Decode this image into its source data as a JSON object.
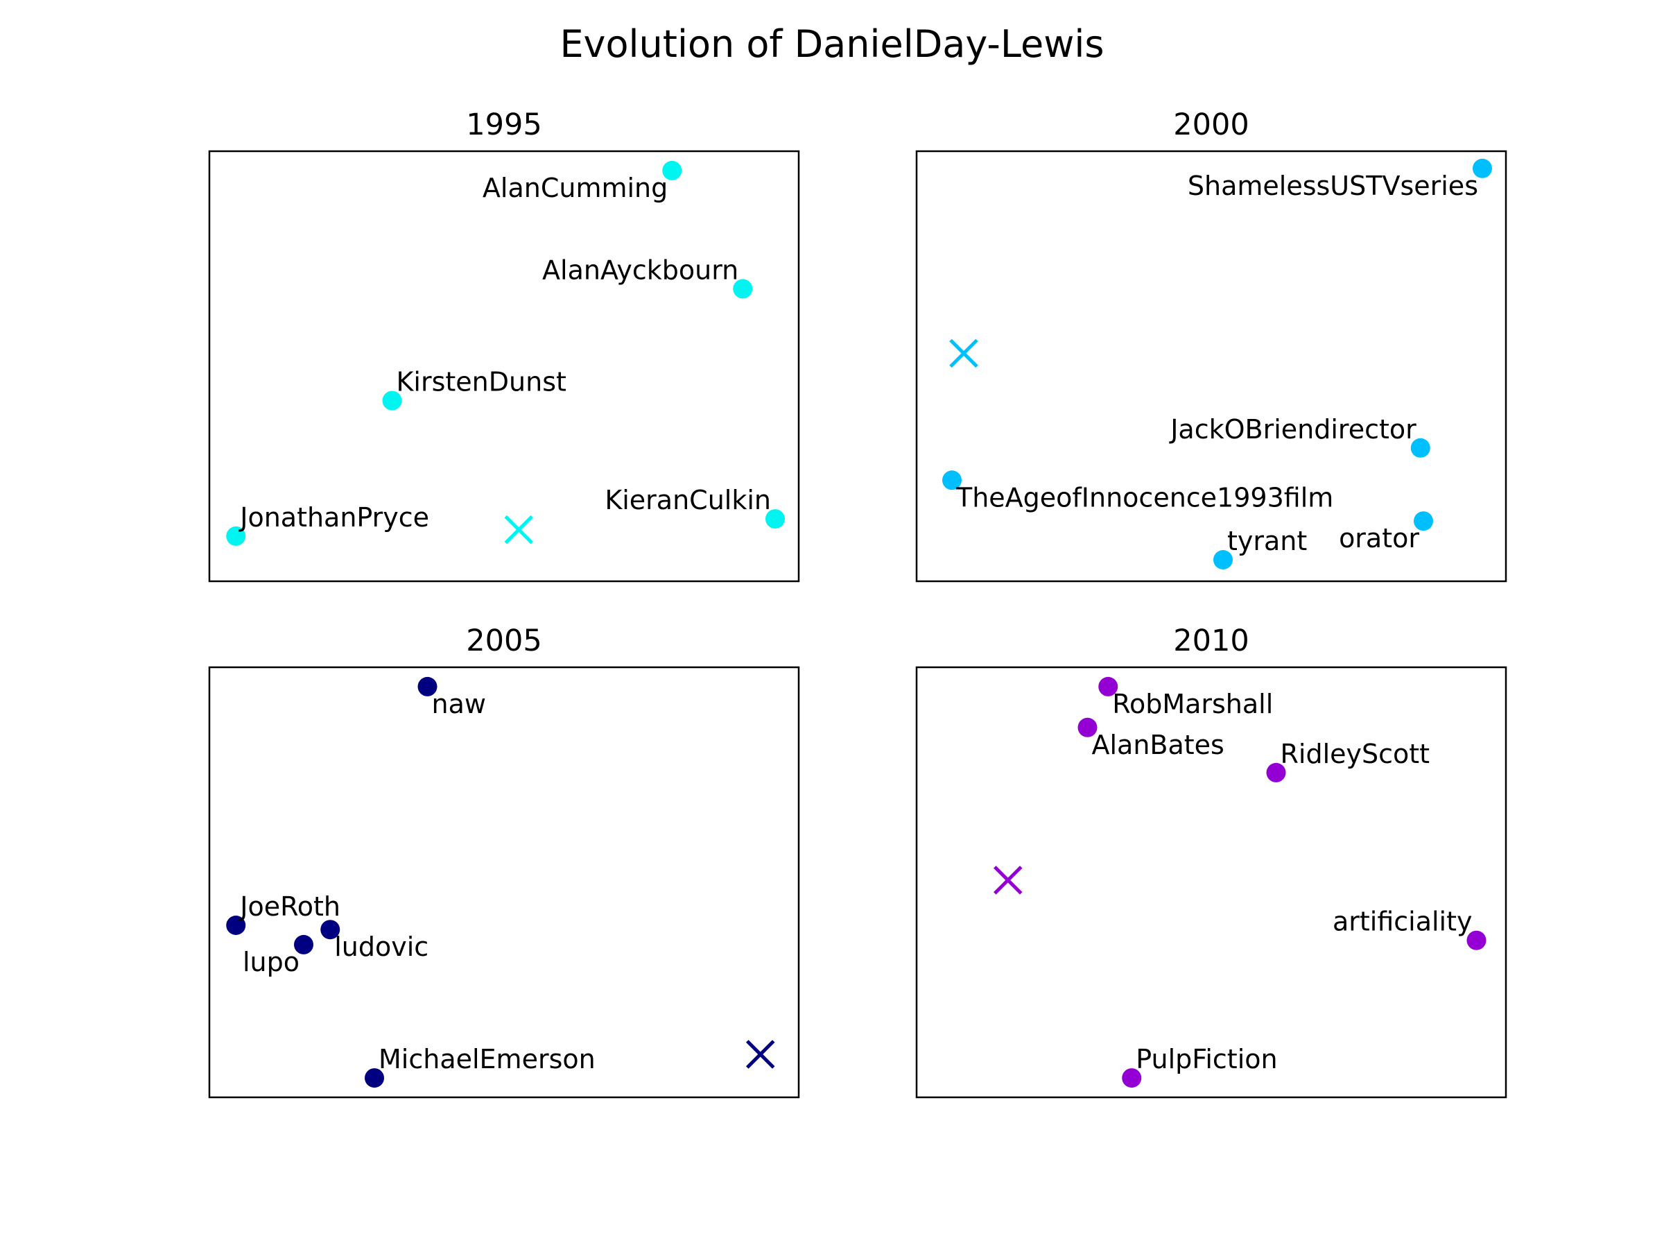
{
  "chart_data": {
    "type": "scatter",
    "title": "Evolution of DanielDay-Lewis",
    "grid": false,
    "legend": "none",
    "panels": [
      {
        "title": "1995",
        "color": "#00f5f0",
        "center": [
          5.25,
          1.2
        ],
        "points": [
          {
            "label": "AlanCumming",
            "x": 7.85,
            "y": 9.55,
            "anchor": "end",
            "dy": 1
          },
          {
            "label": "AlanAyckbourn",
            "x": 9.05,
            "y": 6.8,
            "anchor": "end",
            "dy": -1
          },
          {
            "label": "KirstenDunst",
            "x": 3.1,
            "y": 4.2,
            "anchor": "start",
            "dy": -1
          },
          {
            "label": "JonathanPryce",
            "x": 0.45,
            "y": 1.05,
            "anchor": "start",
            "dy": -1
          },
          {
            "label": "KieranCulkin",
            "x": 9.6,
            "y": 1.45,
            "anchor": "end",
            "dy": -1
          }
        ]
      },
      {
        "title": "2000",
        "color": "#00bfff",
        "center": [
          0.8,
          5.3
        ],
        "points": [
          {
            "label": "ShamelessUSTVseries",
            "x": 9.6,
            "y": 9.6,
            "anchor": "end",
            "dy": 1
          },
          {
            "label": "JackOBriendirector",
            "x": 8.55,
            "y": 3.1,
            "anchor": "end",
            "dy": -1
          },
          {
            "label": "TheAgeofInnocence1993film",
            "x": 0.6,
            "y": 2.35,
            "anchor": "start",
            "dy": 1
          },
          {
            "label": "orator",
            "x": 8.6,
            "y": 1.4,
            "anchor": "end",
            "dy": 1
          },
          {
            "label": "tyrant",
            "x": 5.2,
            "y": 0.5,
            "anchor": "start",
            "dy": -1
          }
        ]
      },
      {
        "title": "2005",
        "color": "#000080",
        "center": [
          9.35,
          1.0
        ],
        "points": [
          {
            "label": "naw",
            "x": 3.7,
            "y": 9.55,
            "anchor": "start",
            "dy": 1
          },
          {
            "label": "JoeRoth",
            "x": 0.45,
            "y": 4.0,
            "anchor": "start",
            "dy": -1
          },
          {
            "label": "ludovic",
            "x": 2.05,
            "y": 3.9,
            "anchor": "start",
            "dy": 1
          },
          {
            "label": "lupo",
            "x": 1.6,
            "y": 3.55,
            "anchor": "end",
            "dy": 1
          },
          {
            "label": "MichaelEmerson",
            "x": 2.8,
            "y": 0.45,
            "anchor": "start",
            "dy": -1
          }
        ]
      },
      {
        "title": "2010",
        "color": "#9400d3",
        "center": [
          1.55,
          5.05
        ],
        "points": [
          {
            "label": "RobMarshall",
            "x": 3.25,
            "y": 9.55,
            "anchor": "start",
            "dy": 1
          },
          {
            "label": "AlanBates",
            "x": 2.9,
            "y": 8.6,
            "anchor": "start",
            "dy": 1
          },
          {
            "label": "RidleyScott",
            "x": 6.1,
            "y": 7.55,
            "anchor": "start",
            "dy": -1
          },
          {
            "label": "artificiality",
            "x": 9.5,
            "y": 3.65,
            "anchor": "end",
            "dy": -1
          },
          {
            "label": "PulpFiction",
            "x": 3.65,
            "y": 0.45,
            "anchor": "start",
            "dy": -1
          }
        ]
      }
    ]
  }
}
